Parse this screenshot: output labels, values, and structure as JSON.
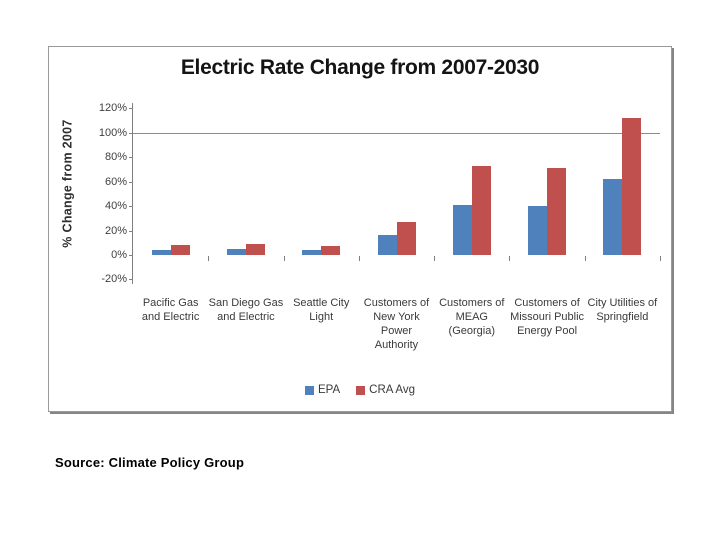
{
  "slide": {
    "source_note": "Source: Climate Policy Group"
  },
  "chart_data": {
    "type": "bar",
    "title": "Electric Rate Change from 2007-2030",
    "ylabel": "% Change from 2007",
    "categories": [
      "Pacific Gas and Electric",
      "San Diego Gas and Electric",
      "Seattle City Light",
      "Customers of New York Power Authority",
      "Customers of MEAG (Georgia)",
      "Customers of Missouri Public Energy Pool",
      "City Utilities of Springfield"
    ],
    "series": [
      {
        "name": "EPA",
        "color": "#4f81bd",
        "values": [
          4,
          5,
          4,
          16,
          41,
          40,
          62
        ]
      },
      {
        "name": "CRA Avg",
        "color": "#c0504d",
        "values": [
          8,
          9,
          7,
          27,
          73,
          71,
          112
        ]
      }
    ],
    "ylim": [
      -20,
      120
    ],
    "ytick_step": 20,
    "ytick_labels": [
      "120%",
      "100%",
      "80%",
      "60%",
      "40%",
      "20%",
      "0%",
      "-20%"
    ],
    "gridline_values": [
      100
    ],
    "grid": "single horizontal gridline at 100% only",
    "legend_position": "bottom",
    "axis_color": "#808080",
    "gridline_color": "#8c8c8c"
  }
}
